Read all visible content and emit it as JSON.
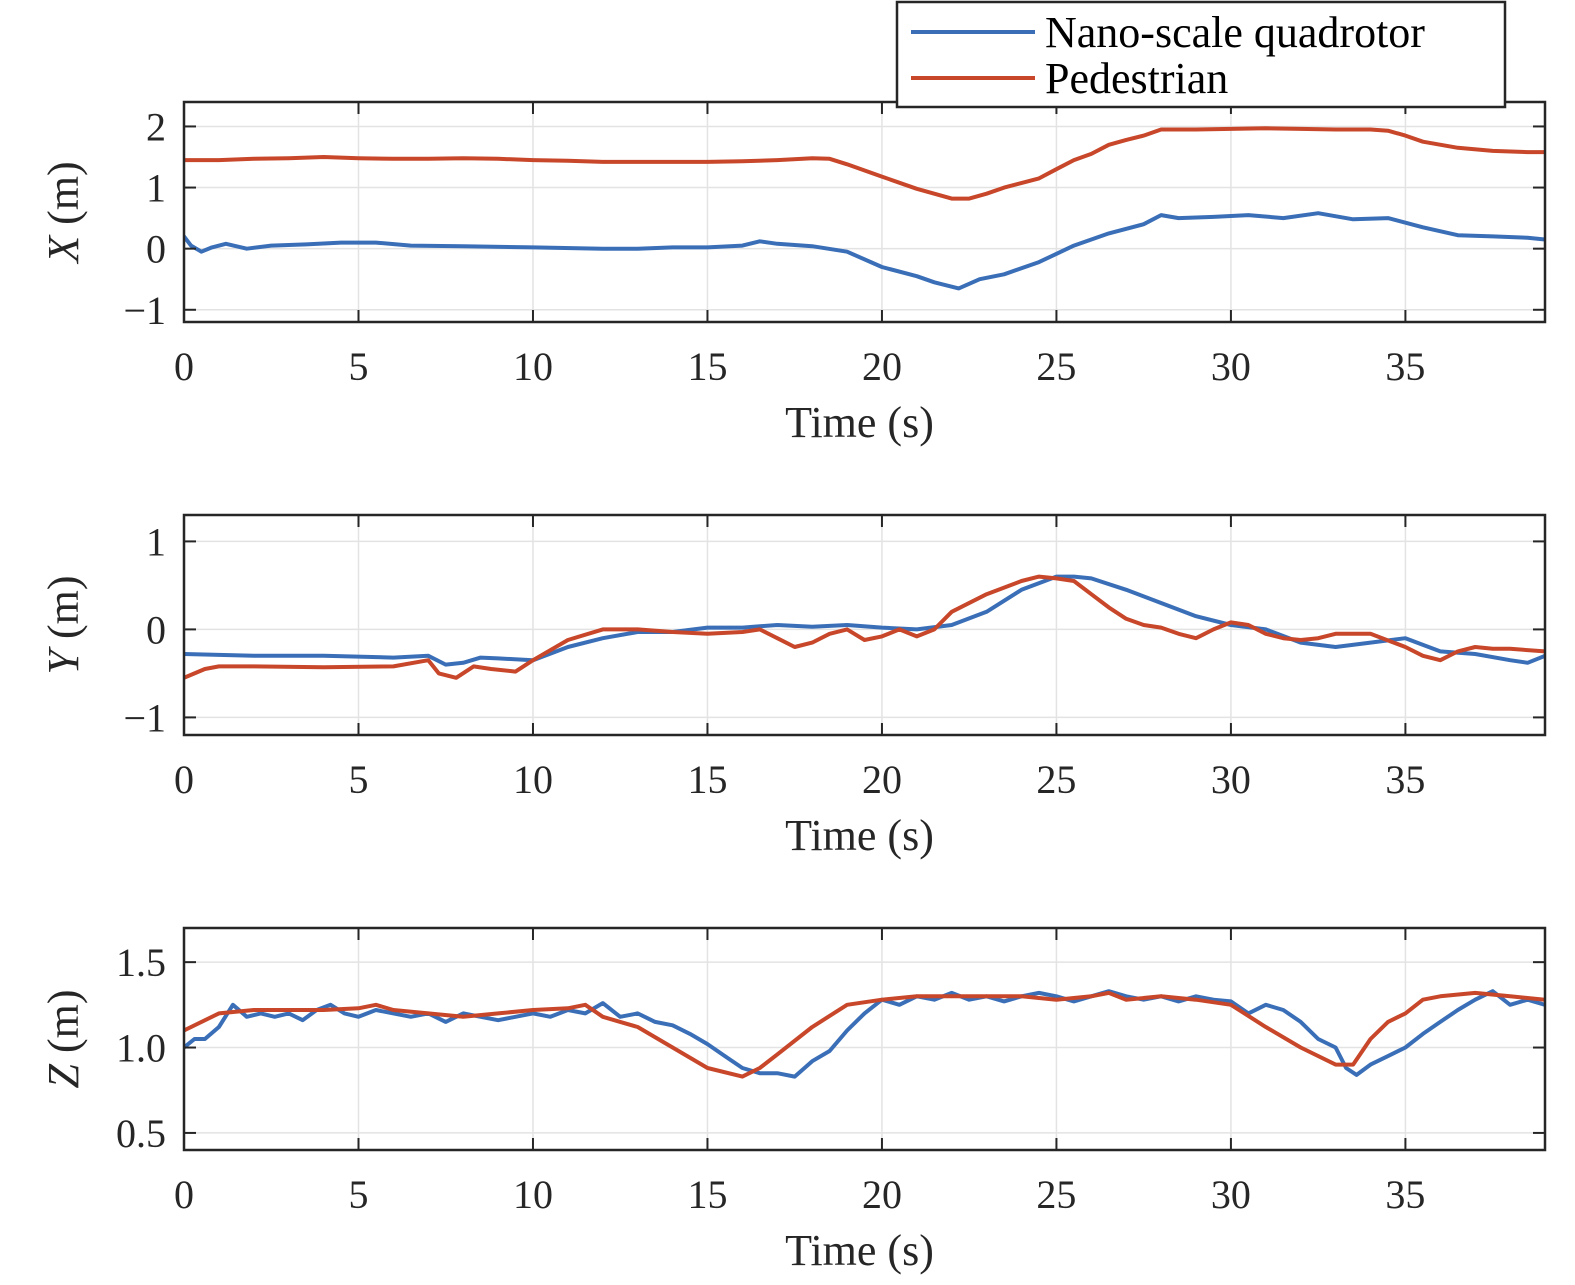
{
  "legend": {
    "location": "top-right",
    "entries": [
      {
        "label": "Nano-scale quadrotor",
        "color": "#3a6fb8"
      },
      {
        "label": "Pedestrian",
        "color": "#c8472a"
      }
    ]
  },
  "chart_data": [
    {
      "type": "line",
      "ylabel_var": "X",
      "ylabel_unit": " (m)",
      "xlabel": "Time (s)",
      "xlim": [
        0,
        39
      ],
      "ylim": [
        -1.2,
        2.4
      ],
      "xticks": [
        0,
        5,
        10,
        15,
        20,
        25,
        30,
        35
      ],
      "yticks": [
        -1,
        0,
        1,
        2
      ],
      "ytick_labels": [
        "−1",
        "0",
        "1",
        "2"
      ],
      "grid": true,
      "series": [
        {
          "name": "Nano-scale quadrotor",
          "color": "#3a6fb8",
          "x": [
            0,
            0.2,
            0.5,
            0.8,
            1.2,
            1.8,
            2.5,
            3.5,
            4.5,
            5.5,
            6.5,
            8,
            10,
            12,
            13,
            14,
            15,
            16,
            16.5,
            17,
            18,
            19,
            20,
            21,
            21.5,
            22.2,
            22.8,
            23.5,
            24.5,
            25.5,
            26.5,
            27.5,
            28,
            28.5,
            29.5,
            30.5,
            31.5,
            32.5,
            33.5,
            34.5,
            35.5,
            36.5,
            37.5,
            38.5,
            39
          ],
          "y": [
            0.2,
            0.05,
            -0.05,
            0.02,
            0.08,
            0.0,
            0.05,
            0.07,
            0.1,
            0.1,
            0.05,
            0.04,
            0.02,
            0.0,
            0.0,
            0.02,
            0.02,
            0.05,
            0.12,
            0.08,
            0.04,
            -0.05,
            -0.3,
            -0.45,
            -0.55,
            -0.65,
            -0.5,
            -0.42,
            -0.22,
            0.05,
            0.25,
            0.4,
            0.55,
            0.5,
            0.52,
            0.55,
            0.5,
            0.58,
            0.48,
            0.5,
            0.35,
            0.22,
            0.2,
            0.18,
            0.15
          ]
        },
        {
          "name": "Pedestrian",
          "color": "#c8472a",
          "x": [
            0,
            1,
            2,
            3,
            4,
            5,
            6,
            7,
            8,
            9,
            10,
            11,
            12,
            13,
            14,
            15,
            16,
            17,
            18,
            18.5,
            19,
            20,
            21,
            22,
            22.5,
            23,
            23.5,
            24.5,
            25,
            25.5,
            26,
            26.5,
            27,
            27.5,
            28,
            29,
            30,
            31,
            32,
            33,
            34,
            34.5,
            35,
            35.5,
            36.5,
            37.5,
            38.5,
            39
          ],
          "y": [
            1.45,
            1.45,
            1.47,
            1.48,
            1.5,
            1.48,
            1.47,
            1.47,
            1.48,
            1.47,
            1.45,
            1.44,
            1.42,
            1.42,
            1.42,
            1.42,
            1.43,
            1.45,
            1.48,
            1.47,
            1.38,
            1.18,
            0.98,
            0.82,
            0.82,
            0.9,
            1.0,
            1.15,
            1.3,
            1.45,
            1.55,
            1.7,
            1.78,
            1.85,
            1.95,
            1.95,
            1.96,
            1.97,
            1.96,
            1.95,
            1.95,
            1.93,
            1.85,
            1.75,
            1.65,
            1.6,
            1.58,
            1.58
          ]
        }
      ]
    },
    {
      "type": "line",
      "ylabel_var": "Y",
      "ylabel_unit": " (m)",
      "xlabel": "Time (s)",
      "xlim": [
        0,
        39
      ],
      "ylim": [
        -1.2,
        1.3
      ],
      "xticks": [
        0,
        5,
        10,
        15,
        20,
        25,
        30,
        35
      ],
      "yticks": [
        -1,
        0,
        1
      ],
      "ytick_labels": [
        "−1",
        "0",
        "1"
      ],
      "grid": true,
      "series": [
        {
          "name": "Nano-scale quadrotor",
          "color": "#3a6fb8",
          "x": [
            0,
            2,
            4,
            6,
            7,
            7.5,
            8,
            8.5,
            9,
            10,
            11,
            12,
            13,
            14,
            15,
            16,
            17,
            18,
            19,
            20,
            21,
            22,
            23,
            24,
            25,
            25.5,
            26,
            27,
            28,
            29,
            30,
            31,
            32,
            33,
            34,
            35,
            36,
            37,
            38,
            38.5,
            39
          ],
          "y": [
            -0.28,
            -0.3,
            -0.3,
            -0.32,
            -0.3,
            -0.4,
            -0.38,
            -0.32,
            -0.33,
            -0.35,
            -0.2,
            -0.1,
            -0.03,
            -0.03,
            0.02,
            0.02,
            0.05,
            0.03,
            0.05,
            0.02,
            0.0,
            0.05,
            0.2,
            0.45,
            0.6,
            0.6,
            0.58,
            0.45,
            0.3,
            0.15,
            0.05,
            0.0,
            -0.15,
            -0.2,
            -0.15,
            -0.1,
            -0.25,
            -0.28,
            -0.35,
            -0.38,
            -0.3
          ]
        },
        {
          "name": "Pedestrian",
          "color": "#c8472a",
          "x": [
            0,
            0.3,
            0.6,
            1,
            2,
            4,
            6,
            7,
            7.3,
            7.8,
            8.3,
            8.8,
            9.5,
            10,
            11,
            12,
            13,
            14,
            15,
            16,
            16.5,
            17,
            17.5,
            18,
            18.5,
            19,
            19.5,
            20,
            20.5,
            21,
            21.5,
            22,
            23,
            24,
            24.5,
            25,
            25.5,
            26,
            26.5,
            27,
            27.5,
            28,
            28.5,
            29,
            29.5,
            30,
            30.5,
            31,
            31.5,
            32,
            32.5,
            33,
            34,
            35,
            35.5,
            36,
            36.5,
            37,
            37.5,
            38,
            39
          ],
          "y": [
            -0.55,
            -0.5,
            -0.45,
            -0.42,
            -0.42,
            -0.43,
            -0.42,
            -0.35,
            -0.5,
            -0.55,
            -0.42,
            -0.45,
            -0.48,
            -0.35,
            -0.12,
            0.0,
            0.0,
            -0.03,
            -0.05,
            -0.03,
            0.0,
            -0.1,
            -0.2,
            -0.15,
            -0.05,
            0.0,
            -0.12,
            -0.08,
            0.0,
            -0.08,
            0.0,
            0.2,
            0.4,
            0.55,
            0.6,
            0.58,
            0.55,
            0.4,
            0.25,
            0.12,
            0.05,
            0.02,
            -0.05,
            -0.1,
            0.0,
            0.08,
            0.05,
            -0.05,
            -0.1,
            -0.12,
            -0.1,
            -0.05,
            -0.05,
            -0.2,
            -0.3,
            -0.35,
            -0.25,
            -0.2,
            -0.22,
            -0.22,
            -0.25
          ]
        }
      ]
    },
    {
      "type": "line",
      "ylabel_var": "Z",
      "ylabel_unit": " (m)",
      "xlabel": "Time (s)",
      "xlim": [
        0,
        39
      ],
      "ylim": [
        0.4,
        1.7
      ],
      "xticks": [
        0,
        5,
        10,
        15,
        20,
        25,
        30,
        35
      ],
      "yticks": [
        0.5,
        1.0,
        1.5
      ],
      "ytick_labels": [
        "0.5",
        "1.0",
        "1.5"
      ],
      "grid": true,
      "series": [
        {
          "name": "Nano-scale quadrotor",
          "color": "#3a6fb8",
          "x": [
            0,
            0.3,
            0.6,
            1,
            1.4,
            1.8,
            2.2,
            2.6,
            3,
            3.4,
            3.8,
            4.2,
            4.6,
            5,
            5.5,
            6,
            6.5,
            7,
            7.5,
            8,
            8.5,
            9,
            9.5,
            10,
            10.5,
            11,
            11.5,
            12,
            12.5,
            13,
            13.5,
            14,
            14.5,
            15,
            15.5,
            16,
            16.5,
            17,
            17.5,
            18,
            18.5,
            19,
            19.5,
            20,
            20.5,
            21,
            21.5,
            22,
            22.5,
            23,
            23.5,
            24,
            24.5,
            25,
            25.5,
            26,
            26.5,
            27,
            27.5,
            28,
            28.5,
            29,
            29.5,
            30,
            30.5,
            31,
            31.5,
            32,
            32.5,
            33,
            33.3,
            33.6,
            34,
            34.5,
            35,
            35.5,
            36,
            36.5,
            37,
            37.5,
            38,
            38.5,
            39
          ],
          "y": [
            1.0,
            1.05,
            1.05,
            1.12,
            1.25,
            1.18,
            1.2,
            1.18,
            1.2,
            1.16,
            1.22,
            1.25,
            1.2,
            1.18,
            1.22,
            1.2,
            1.18,
            1.2,
            1.15,
            1.2,
            1.18,
            1.16,
            1.18,
            1.2,
            1.18,
            1.22,
            1.2,
            1.26,
            1.18,
            1.2,
            1.15,
            1.13,
            1.08,
            1.02,
            0.95,
            0.88,
            0.85,
            0.85,
            0.83,
            0.92,
            0.98,
            1.1,
            1.2,
            1.28,
            1.25,
            1.3,
            1.28,
            1.32,
            1.28,
            1.3,
            1.27,
            1.3,
            1.32,
            1.3,
            1.27,
            1.3,
            1.33,
            1.3,
            1.28,
            1.3,
            1.27,
            1.3,
            1.28,
            1.27,
            1.2,
            1.25,
            1.22,
            1.15,
            1.05,
            1.0,
            0.88,
            0.84,
            0.9,
            0.95,
            1.0,
            1.08,
            1.15,
            1.22,
            1.28,
            1.33,
            1.25,
            1.28,
            1.25
          ]
        },
        {
          "name": "Pedestrian",
          "color": "#c8472a",
          "x": [
            0,
            1,
            2,
            3,
            4,
            5,
            5.5,
            6,
            7,
            8,
            9,
            10,
            11,
            11.5,
            12,
            12.5,
            13,
            14,
            15,
            16,
            16.5,
            17,
            18,
            19,
            20,
            21,
            22,
            23,
            24,
            25,
            26,
            26.5,
            27,
            28,
            29,
            30,
            31,
            32,
            33,
            33.5,
            34,
            34.5,
            35,
            35.5,
            36,
            37,
            38,
            39
          ],
          "y": [
            1.1,
            1.2,
            1.22,
            1.22,
            1.22,
            1.23,
            1.25,
            1.22,
            1.2,
            1.18,
            1.2,
            1.22,
            1.23,
            1.25,
            1.18,
            1.15,
            1.12,
            1.0,
            0.88,
            0.83,
            0.88,
            0.96,
            1.12,
            1.25,
            1.28,
            1.3,
            1.3,
            1.3,
            1.3,
            1.28,
            1.3,
            1.32,
            1.28,
            1.3,
            1.28,
            1.25,
            1.12,
            1.0,
            0.9,
            0.9,
            1.05,
            1.15,
            1.2,
            1.28,
            1.3,
            1.32,
            1.3,
            1.28
          ]
        }
      ]
    }
  ]
}
